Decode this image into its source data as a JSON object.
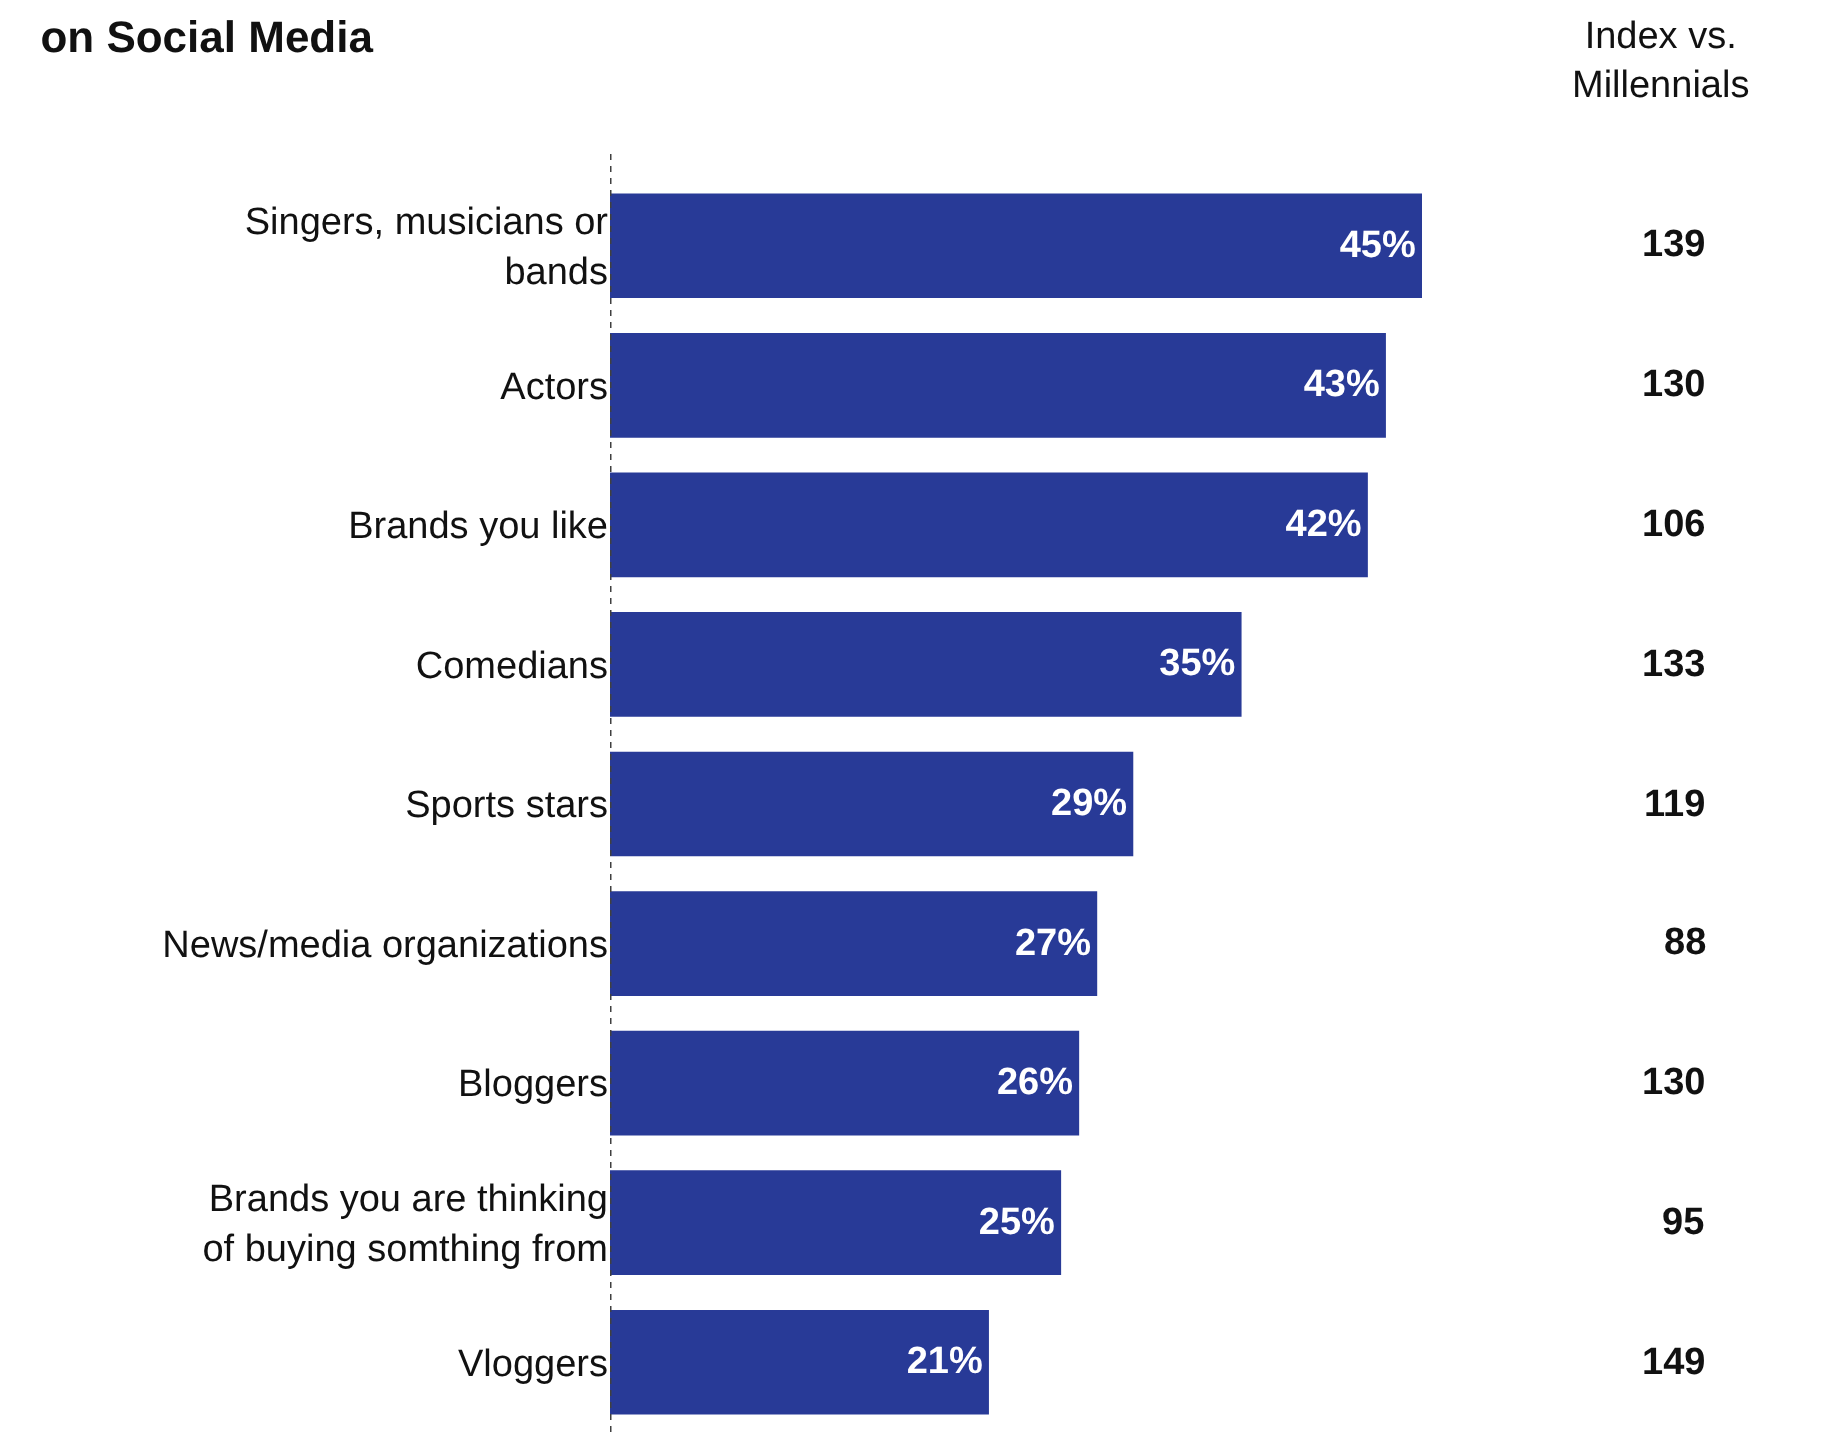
{
  "chart_data": {
    "type": "bar",
    "orientation": "horizontal",
    "title": "on Social Media",
    "categories": [
      "Singers, musicians or bands",
      "Actors",
      "Brands you like",
      "Comedians",
      "Sports stars",
      "News/media organizations",
      "Bloggers",
      "Brands you are thinking of buying somthing from",
      "Vloggers"
    ],
    "values": [
      45,
      43,
      42,
      35,
      29,
      27,
      26,
      25,
      21
    ],
    "value_labels": [
      "45%",
      "43%",
      "42%",
      "35%",
      "29%",
      "27%",
      "26%",
      "25%",
      "21%"
    ],
    "color": "#283a97",
    "annotations": [
      "Index vs. Millennials",
      "139",
      "130",
      "106",
      "133",
      "119",
      "88",
      "130",
      "95",
      "149"
    ],
    "legend": false
  }
}
